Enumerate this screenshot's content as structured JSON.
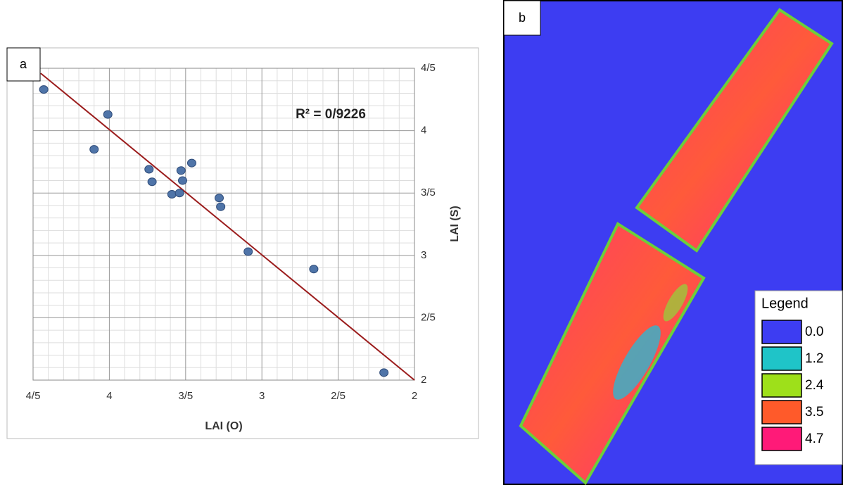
{
  "chart_data": {
    "type": "scatter",
    "panel_label": "a",
    "x_label": "LAI (O)",
    "y_label": "LAI (S)",
    "annotation": "R² = 0/9226",
    "x": [
      4.43,
      4.01,
      4.1,
      3.74,
      3.72,
      3.53,
      3.52,
      3.46,
      3.59,
      3.54,
      3.28,
      3.27,
      3.09,
      2.66,
      2.2
    ],
    "values": [
      4.33,
      4.13,
      3.85,
      3.69,
      3.59,
      3.68,
      3.6,
      3.74,
      3.49,
      3.5,
      3.46,
      3.39,
      3.03,
      2.89,
      2.06
    ],
    "color": "#4f74a8",
    "trendline": {
      "x": [
        4.45,
        2
      ],
      "y": [
        4.46,
        2
      ],
      "color": "#9b1c1c"
    },
    "xlim": [
      4.5,
      2
    ],
    "ylim": [
      2,
      4.5
    ],
    "xticks": [
      {
        "value": 4.5,
        "label": "4/5"
      },
      4,
      {
        "value": 3.5,
        "label": "3/5"
      },
      3,
      {
        "value": 2.5,
        "label": "2/5"
      },
      2
    ],
    "yticks": [
      2,
      {
        "value": 2.5,
        "label": "2/5"
      },
      3,
      {
        "value": 3.5,
        "label": "3/5"
      },
      4,
      {
        "value": 4.5,
        "label": "4/5"
      }
    ],
    "grid": true,
    "minor_grid": true
  },
  "map": {
    "panel_label": "b",
    "legend": {
      "title": "Legend",
      "items": [
        {
          "label": "0.0",
          "color": "#3d3df2"
        },
        {
          "label": "1.2",
          "color": "#1fc4c8"
        },
        {
          "label": "2.4",
          "color": "#9ee01a"
        },
        {
          "label": "3.5",
          "color": "#ff5a2a"
        },
        {
          "label": "4.7",
          "color": "#ff1a78"
        }
      ]
    }
  }
}
